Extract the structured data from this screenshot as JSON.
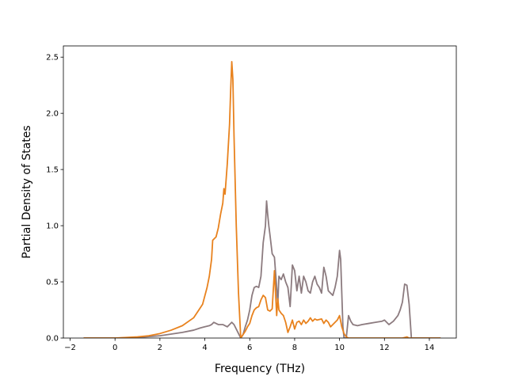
{
  "chart_data": {
    "type": "line",
    "title": "",
    "xlabel": "Frequency (THz)",
    "ylabel": "Partial Density of States",
    "xlim": [
      -2.3,
      15.2
    ],
    "ylim": [
      0.0,
      2.6
    ],
    "xticks": [
      -2,
      0,
      2,
      4,
      6,
      8,
      10,
      12,
      14
    ],
    "yticks": [
      0.0,
      0.5,
      1.0,
      1.5,
      2.0,
      2.5
    ],
    "xtick_labels": [
      "−2",
      "0",
      "2",
      "4",
      "6",
      "8",
      "10",
      "12",
      "14"
    ],
    "ytick_labels": [
      "0.0",
      "0.5",
      "1.0",
      "1.5",
      "2.0",
      "2.5"
    ],
    "grid": false,
    "legend": "none",
    "series": [
      {
        "color": "#e8821e",
        "x": [
          -1.4,
          0.0,
          0.5,
          1.0,
          1.5,
          2.0,
          2.5,
          3.0,
          3.5,
          3.7,
          3.9,
          4.1,
          4.2,
          4.3,
          4.35,
          4.5,
          4.6,
          4.7,
          4.8,
          4.85,
          4.9,
          5.0,
          5.1,
          5.15,
          5.2,
          5.25,
          5.3,
          5.4,
          5.5,
          5.6,
          5.7,
          5.8,
          5.9,
          6.0,
          6.1,
          6.2,
          6.3,
          6.4,
          6.5,
          6.6,
          6.7,
          6.8,
          6.9,
          7.0,
          7.1,
          7.15,
          7.2,
          7.25,
          7.3,
          7.4,
          7.5,
          7.6,
          7.7,
          7.8,
          7.9,
          8.0,
          8.1,
          8.2,
          8.3,
          8.4,
          8.5,
          8.6,
          8.7,
          8.8,
          8.9,
          9.0,
          9.2,
          9.3,
          9.4,
          9.5,
          9.6,
          9.7,
          9.8,
          9.9,
          10.0,
          10.1,
          10.2,
          10.3,
          10.4,
          11.0,
          12.0,
          12.8,
          13.0,
          13.1,
          13.3,
          14.5
        ],
        "y": [
          0.0,
          0.0,
          0.005,
          0.01,
          0.02,
          0.04,
          0.07,
          0.11,
          0.18,
          0.24,
          0.3,
          0.45,
          0.55,
          0.7,
          0.87,
          0.9,
          0.98,
          1.1,
          1.2,
          1.33,
          1.28,
          1.55,
          1.9,
          2.2,
          2.46,
          2.3,
          1.8,
          1.0,
          0.4,
          0.0,
          0.03,
          0.06,
          0.1,
          0.13,
          0.2,
          0.25,
          0.27,
          0.28,
          0.34,
          0.38,
          0.36,
          0.25,
          0.24,
          0.26,
          0.6,
          0.4,
          0.2,
          0.35,
          0.25,
          0.22,
          0.2,
          0.14,
          0.05,
          0.1,
          0.16,
          0.08,
          0.14,
          0.15,
          0.12,
          0.16,
          0.13,
          0.15,
          0.18,
          0.15,
          0.17,
          0.16,
          0.17,
          0.13,
          0.16,
          0.14,
          0.1,
          0.12,
          0.14,
          0.16,
          0.2,
          0.1,
          0.04,
          0.01,
          0.0,
          0.0,
          0.0,
          0.0,
          0.01,
          0.0,
          0.0,
          0.0
        ]
      },
      {
        "color": "#8c7b7f",
        "x": [
          -1.4,
          0.0,
          1.0,
          2.0,
          3.0,
          3.5,
          3.8,
          4.0,
          4.2,
          4.3,
          4.4,
          4.5,
          4.6,
          4.8,
          5.0,
          5.1,
          5.2,
          5.3,
          5.4,
          5.5,
          5.6,
          5.7,
          5.8,
          5.9,
          6.0,
          6.1,
          6.2,
          6.3,
          6.4,
          6.5,
          6.6,
          6.7,
          6.75,
          6.8,
          6.85,
          6.9,
          7.0,
          7.1,
          7.2,
          7.25,
          7.3,
          7.4,
          7.5,
          7.6,
          7.7,
          7.8,
          7.9,
          8.0,
          8.1,
          8.2,
          8.3,
          8.4,
          8.5,
          8.6,
          8.7,
          8.8,
          8.9,
          9.0,
          9.1,
          9.2,
          9.3,
          9.4,
          9.5,
          9.6,
          9.7,
          9.8,
          9.9,
          10.0,
          10.05,
          10.1,
          10.15,
          10.2,
          10.3,
          10.4,
          10.5,
          10.6,
          10.8,
          11.0,
          11.3,
          11.6,
          11.9,
          12.0,
          12.2,
          12.4,
          12.6,
          12.7,
          12.8,
          12.85,
          12.9,
          13.0,
          13.1,
          13.2,
          13.3,
          14.5
        ],
        "y": [
          0.0,
          0.0,
          0.005,
          0.02,
          0.05,
          0.07,
          0.09,
          0.1,
          0.11,
          0.12,
          0.14,
          0.13,
          0.12,
          0.12,
          0.1,
          0.12,
          0.14,
          0.12,
          0.08,
          0.04,
          0.0,
          0.03,
          0.1,
          0.16,
          0.25,
          0.38,
          0.45,
          0.46,
          0.45,
          0.55,
          0.85,
          1.0,
          1.22,
          1.1,
          1.0,
          0.92,
          0.75,
          0.72,
          0.45,
          0.3,
          0.55,
          0.52,
          0.57,
          0.5,
          0.45,
          0.28,
          0.65,
          0.6,
          0.42,
          0.55,
          0.4,
          0.55,
          0.5,
          0.42,
          0.4,
          0.5,
          0.55,
          0.48,
          0.45,
          0.4,
          0.63,
          0.55,
          0.42,
          0.4,
          0.38,
          0.45,
          0.55,
          0.78,
          0.7,
          0.4,
          0.1,
          0.0,
          0.0,
          0.2,
          0.15,
          0.12,
          0.11,
          0.12,
          0.13,
          0.14,
          0.15,
          0.16,
          0.12,
          0.15,
          0.2,
          0.25,
          0.32,
          0.4,
          0.48,
          0.47,
          0.3,
          0.0,
          0.0,
          0.0
        ]
      }
    ]
  }
}
